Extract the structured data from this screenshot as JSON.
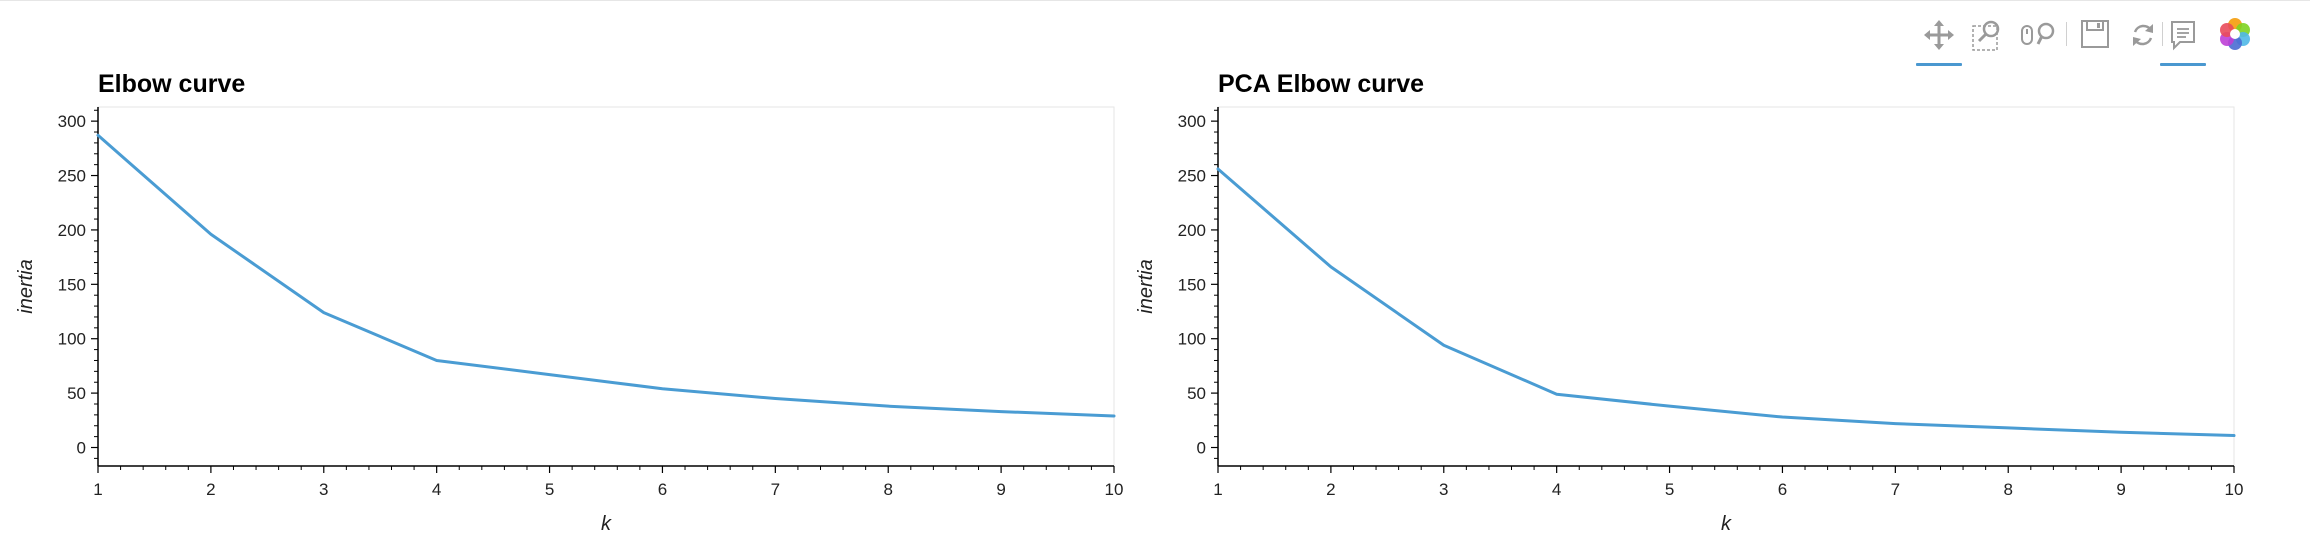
{
  "toolbar": {
    "tools": [
      {
        "name": "pan-tool",
        "icon": "move-arrows-icon",
        "active": true
      },
      {
        "name": "box-zoom-tool",
        "icon": "box-zoom-icon",
        "active": false
      },
      {
        "name": "wheel-zoom-tool",
        "icon": "wheel-zoom-icon",
        "active": false
      },
      {
        "name": "save-tool",
        "icon": "save-disk-icon",
        "active": false
      },
      {
        "name": "reset-tool",
        "icon": "reset-icon",
        "active": false
      },
      {
        "name": "hover-tool",
        "icon": "hover-speech-icon",
        "active": true
      },
      {
        "name": "bokeh-logo",
        "icon": "bokeh-logo-icon",
        "active": false
      }
    ],
    "accent_color": "#4a98d0"
  },
  "chart_data": [
    {
      "type": "line",
      "title": "Elbow curve",
      "xlabel": "k",
      "ylabel": "inertia",
      "x": [
        1,
        2,
        3,
        4,
        5,
        6,
        7,
        8,
        9,
        10
      ],
      "series": [
        {
          "values": [
            287,
            196,
            124,
            80,
            67,
            54,
            45,
            38,
            33,
            29
          ],
          "color": "#4a9cd3"
        }
      ],
      "xlim": [
        1,
        10
      ],
      "ylim": [
        -17,
        313
      ],
      "xticks": [
        1,
        2,
        3,
        4,
        5,
        6,
        7,
        8,
        9,
        10
      ],
      "yticks": [
        0,
        50,
        100,
        150,
        200,
        250,
        300
      ],
      "grid": false
    },
    {
      "type": "line",
      "title": "PCA Elbow curve",
      "xlabel": "k",
      "ylabel": "inertia",
      "x": [
        1,
        2,
        3,
        4,
        5,
        6,
        7,
        8,
        9,
        10
      ],
      "series": [
        {
          "values": [
            256,
            166,
            94,
            49,
            38,
            28,
            22,
            18,
            14,
            11
          ],
          "color": "#4a9cd3"
        }
      ],
      "xlim": [
        1,
        10
      ],
      "ylim": [
        -17,
        313
      ],
      "xticks": [
        1,
        2,
        3,
        4,
        5,
        6,
        7,
        8,
        9,
        10
      ],
      "yticks": [
        0,
        50,
        100,
        150,
        200,
        250,
        300
      ],
      "grid": false
    }
  ]
}
